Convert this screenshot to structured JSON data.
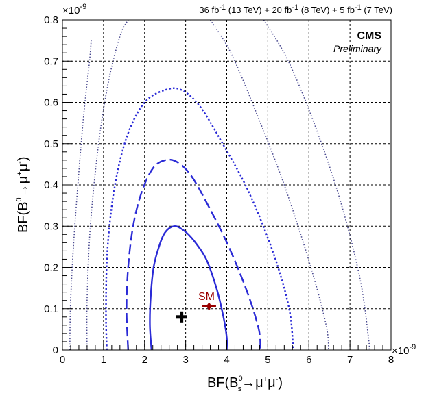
{
  "chart_data": {
    "type": "contour",
    "lumi_parts": [
      {
        "num": "36 fb",
        "sup": "-1",
        "rest": " (13 TeV) + "
      },
      {
        "num": "20 fb",
        "sup": "-1",
        "rest": " (8 TeV) + "
      },
      {
        "num": "5 fb",
        "sup": "-1",
        "rest": " (7 TeV)"
      }
    ],
    "experiment": "CMS",
    "status": "Preliminary",
    "xlabel": {
      "pre": "BF(B",
      "sup": "0",
      "sub": "s",
      "arrow": "→μ",
      "sup2": "+",
      "mid": "μ",
      "sup3": "-",
      "post": ")"
    },
    "ylabel": {
      "pre": "BF(B",
      "sup": "0",
      "arrow": "→μ",
      "sup2": "+",
      "mid": "μ",
      "sup3": "-",
      "post": ")"
    },
    "x_exponent": {
      "base": "×10",
      "exp": "-9"
    },
    "y_exponent": {
      "base": "×10",
      "exp": "-9"
    },
    "xlim": [
      0,
      8
    ],
    "ylim": [
      0,
      0.8
    ],
    "x_ticks": [
      "0",
      "1",
      "2",
      "3",
      "4",
      "5",
      "6",
      "7",
      "8"
    ],
    "y_ticks": [
      "0",
      "0.1",
      "0.2",
      "0.3",
      "0.4",
      "0.5",
      "0.6",
      "0.7",
      "0.8"
    ],
    "grid": true,
    "best_fit": {
      "x": 2.9,
      "y": 0.08
    },
    "sm": {
      "label": "SM",
      "x": 3.57,
      "y": 0.106,
      "x_err": 0.17,
      "y_err": 0.008
    },
    "contours": [
      {
        "level": "1 sigma",
        "style": "solid",
        "color": "#2a2ad6",
        "points": [
          [
            2.17,
            0
          ],
          [
            2.13,
            0.06
          ],
          [
            2.15,
            0.13
          ],
          [
            2.22,
            0.2
          ],
          [
            2.35,
            0.25
          ],
          [
            2.5,
            0.285
          ],
          [
            2.72,
            0.3
          ],
          [
            2.95,
            0.29
          ],
          [
            3.2,
            0.265
          ],
          [
            3.5,
            0.22
          ],
          [
            3.75,
            0.15
          ],
          [
            3.92,
            0.08
          ],
          [
            4.0,
            0.03
          ],
          [
            4.0,
            0
          ]
        ]
      },
      {
        "level": "2 sigma",
        "style": "dashed",
        "color": "#2a2ad6",
        "points": [
          [
            1.6,
            0
          ],
          [
            1.56,
            0.1
          ],
          [
            1.6,
            0.2
          ],
          [
            1.72,
            0.3
          ],
          [
            1.92,
            0.38
          ],
          [
            2.2,
            0.44
          ],
          [
            2.5,
            0.46
          ],
          [
            2.8,
            0.455
          ],
          [
            3.15,
            0.42
          ],
          [
            3.6,
            0.34
          ],
          [
            4.05,
            0.25
          ],
          [
            4.5,
            0.14
          ],
          [
            4.78,
            0.05
          ],
          [
            4.82,
            0
          ]
        ]
      },
      {
        "level": "3 sigma",
        "style": "dotted-thick",
        "color": "#2a2ad6",
        "points": [
          [
            1.08,
            0
          ],
          [
            1.06,
            0.1
          ],
          [
            1.1,
            0.25
          ],
          [
            1.28,
            0.4
          ],
          [
            1.58,
            0.52
          ],
          [
            2.0,
            0.6
          ],
          [
            2.5,
            0.63
          ],
          [
            2.9,
            0.63
          ],
          [
            3.35,
            0.59
          ],
          [
            3.9,
            0.5
          ],
          [
            4.55,
            0.38
          ],
          [
            5.15,
            0.23
          ],
          [
            5.52,
            0.1
          ],
          [
            5.62,
            0
          ]
        ]
      },
      {
        "level": "4 sigma",
        "style": "dotted",
        "color": "#4a4a90",
        "points": [
          [
            0.6,
            0
          ],
          [
            0.6,
            0.12
          ],
          [
            0.68,
            0.3
          ],
          [
            0.88,
            0.5
          ],
          [
            1.12,
            0.65
          ],
          [
            1.4,
            0.76
          ],
          [
            1.6,
            0.8
          ]
        ]
      },
      {
        "level": "4 sigma",
        "style": "dotted",
        "color": "#4a4a90",
        "points": [
          [
            3.6,
            0.8
          ],
          [
            4.1,
            0.72
          ],
          [
            4.7,
            0.58
          ],
          [
            5.4,
            0.4
          ],
          [
            6.05,
            0.2
          ],
          [
            6.42,
            0.06
          ],
          [
            6.48,
            0
          ]
        ]
      },
      {
        "level": "5 sigma",
        "style": "dotted",
        "color": "#4a4a90",
        "points": [
          [
            0.18,
            0
          ],
          [
            0.2,
            0.12
          ],
          [
            0.3,
            0.3
          ],
          [
            0.5,
            0.55
          ],
          [
            0.66,
            0.7
          ],
          [
            0.7,
            0.75
          ]
        ]
      },
      {
        "level": "5 sigma",
        "style": "dotted",
        "color": "#4a4a90",
        "points": [
          [
            4.9,
            0.8
          ],
          [
            5.5,
            0.7
          ],
          [
            6.2,
            0.53
          ],
          [
            6.8,
            0.35
          ],
          [
            7.25,
            0.17
          ],
          [
            7.45,
            0.03
          ],
          [
            7.47,
            0
          ]
        ]
      }
    ]
  }
}
